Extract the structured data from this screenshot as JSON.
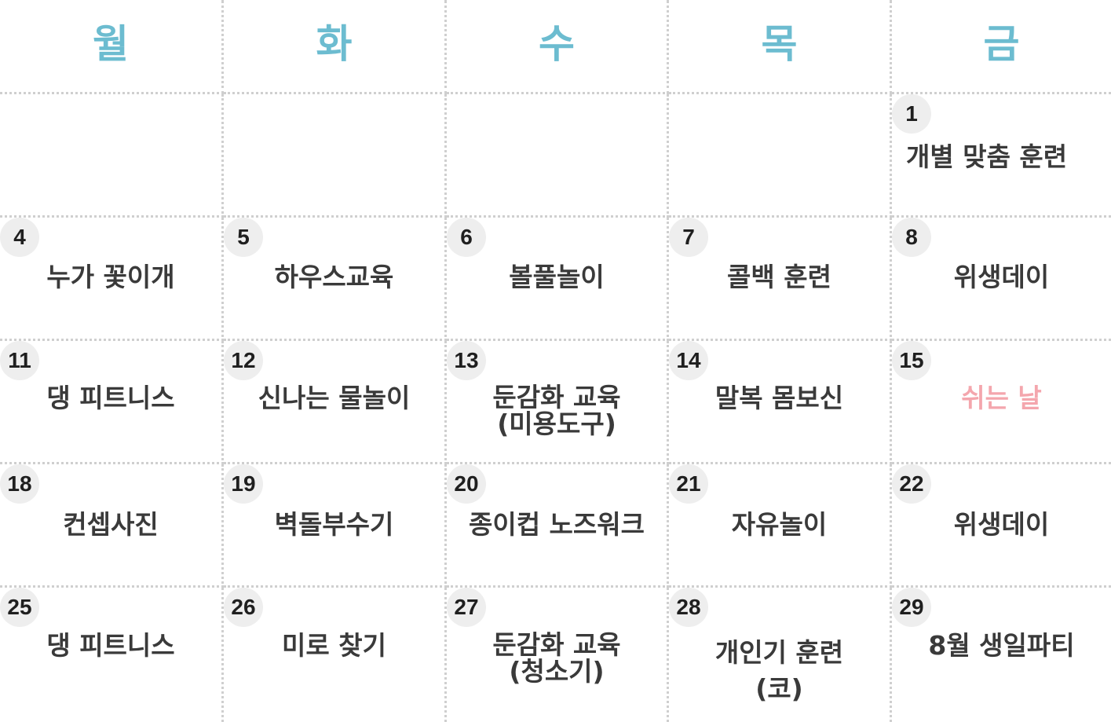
{
  "weekdays": [
    "월",
    "화",
    "수",
    "목",
    "금"
  ],
  "colors": {
    "weekday": "#6cbcd0",
    "event": "#3a3a3a",
    "rest_day": "#f4a6ad",
    "day_badge": "#eeeeee",
    "grid_line": "#cfcfcf"
  },
  "weeks": [
    [
      {
        "day": "",
        "event": ""
      },
      {
        "day": "",
        "event": ""
      },
      {
        "day": "",
        "event": ""
      },
      {
        "day": "",
        "event": ""
      },
      {
        "day": "1",
        "event": "개별 맞춤 훈련"
      }
    ],
    [
      {
        "day": "4",
        "event": "누가 꽃이개"
      },
      {
        "day": "5",
        "event": "하우스교육"
      },
      {
        "day": "6",
        "event": "볼풀놀이"
      },
      {
        "day": "7",
        "event": "콜백 훈련"
      },
      {
        "day": "8",
        "event": "위생데이"
      }
    ],
    [
      {
        "day": "11",
        "event": "댕 피트니스"
      },
      {
        "day": "12",
        "event": "신나는 물놀이"
      },
      {
        "day": "13",
        "event": "둔감화 교육",
        "event2": "(미용도구)"
      },
      {
        "day": "14",
        "event": "말복 몸보신"
      },
      {
        "day": "15",
        "event": "쉬는 날"
      }
    ],
    [
      {
        "day": "18",
        "event": "컨셉사진"
      },
      {
        "day": "19",
        "event": "벽돌부수기"
      },
      {
        "day": "20",
        "event": "종이컵 노즈워크"
      },
      {
        "day": "21",
        "event": "자유놀이"
      },
      {
        "day": "22",
        "event": "위생데이"
      }
    ],
    [
      {
        "day": "25",
        "event": "댕 피트니스"
      },
      {
        "day": "26",
        "event": "미로 찾기"
      },
      {
        "day": "27",
        "event": "둔감화 교육",
        "event2": "(청소기)"
      },
      {
        "day": "28",
        "event": "개인기 훈련",
        "event2": "(코)"
      },
      {
        "day": "29",
        "event": "8월 생일파티"
      }
    ]
  ]
}
